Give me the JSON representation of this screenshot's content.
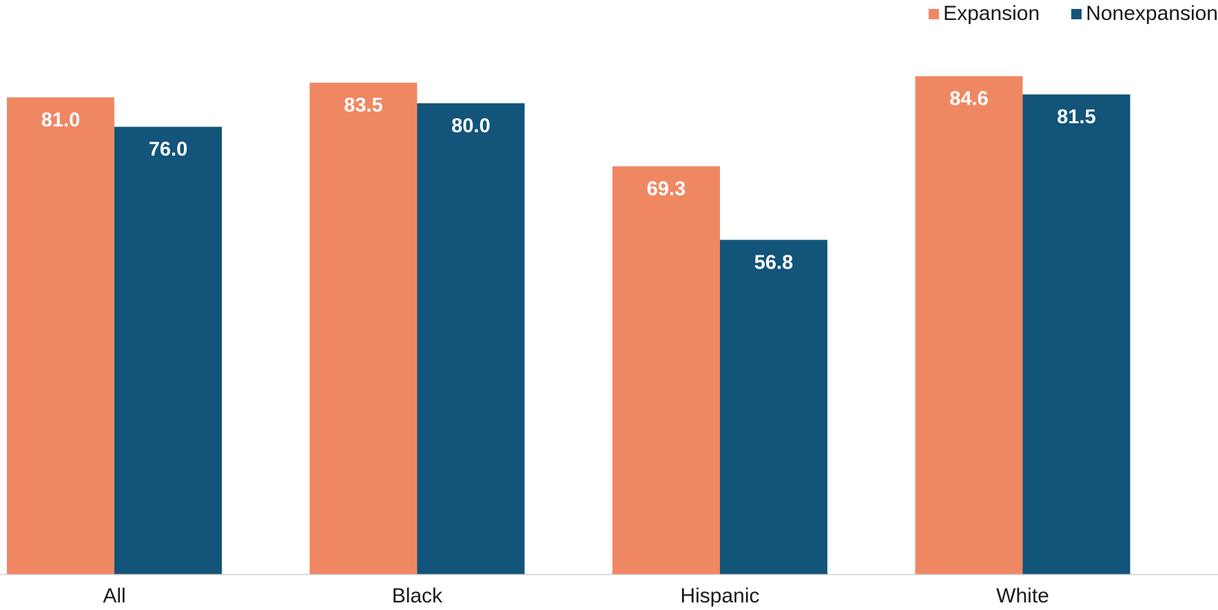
{
  "chart_data": {
    "type": "bar",
    "categories": [
      "All",
      "Black",
      "Hispanic",
      "White"
    ],
    "series": [
      {
        "name": "Expansion",
        "values": [
          81.0,
          83.5,
          69.3,
          84.6
        ],
        "color": "#F08763"
      },
      {
        "name": "Nonexpansion",
        "values": [
          76.0,
          80.0,
          56.8,
          81.5
        ],
        "color": "#12547A"
      }
    ],
    "title": "",
    "xlabel": "",
    "ylabel": "",
    "ylim": [
      0,
      90
    ],
    "grid": false,
    "legend_position": "top-right",
    "data_labels": true
  }
}
